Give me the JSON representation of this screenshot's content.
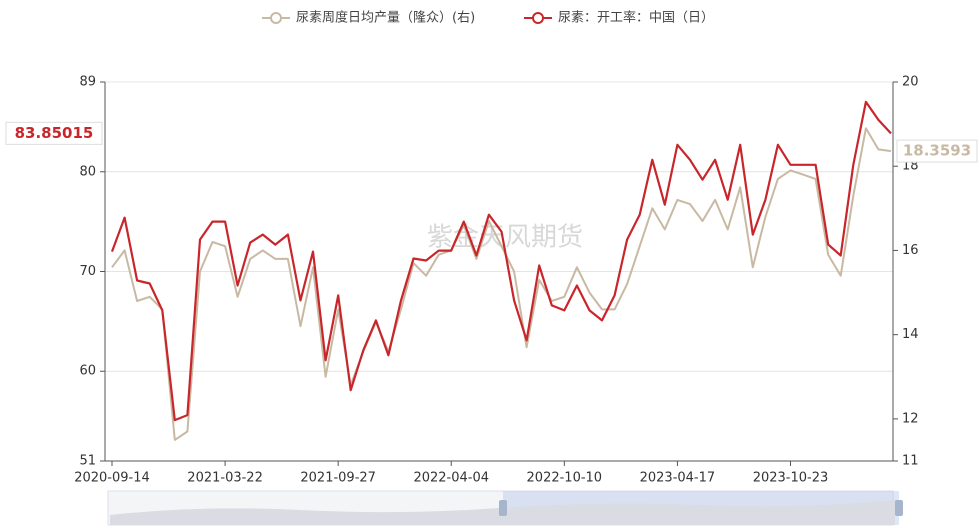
{
  "chart_data": {
    "type": "line",
    "watermark": "紫金天风期货",
    "categories": [
      "2020-09-14",
      null,
      null,
      null,
      null,
      null,
      null,
      null,
      null,
      "2021-03-22",
      null,
      null,
      null,
      null,
      null,
      null,
      null,
      null,
      "2021-09-27",
      null,
      null,
      null,
      null,
      null,
      null,
      null,
      null,
      "2022-04-04",
      null,
      null,
      null,
      null,
      null,
      null,
      null,
      null,
      "2022-10-10",
      null,
      null,
      null,
      null,
      null,
      null,
      null,
      null,
      "2023-04-17",
      null,
      null,
      null,
      null,
      null,
      null,
      null,
      null,
      "2023-10-23",
      null,
      null,
      null,
      null,
      null,
      null,
      null,
      null
    ],
    "series": [
      {
        "name": "尿素周度日均产量（隆众）(右)",
        "color": "#c8b9a3",
        "axis": "y2",
        "values": [
          15.6,
          16.0,
          14.8,
          14.9,
          14.6,
          11.5,
          11.7,
          15.5,
          16.2,
          16.1,
          14.9,
          15.8,
          16.0,
          15.8,
          15.8,
          14.2,
          15.6,
          13.0,
          14.6,
          12.8,
          13.6,
          14.3,
          13.6,
          14.6,
          15.7,
          15.4,
          15.9,
          16.0,
          16.6,
          15.8,
          16.7,
          16.1,
          15.5,
          13.7,
          15.3,
          14.8,
          14.9,
          15.6,
          15.0,
          14.6,
          14.6,
          15.2,
          16.1,
          17.0,
          16.5,
          17.2,
          17.1,
          16.7,
          17.2,
          16.5,
          17.5,
          15.6,
          16.8,
          17.7,
          17.9,
          17.8,
          17.7,
          15.9,
          15.4,
          17.3,
          18.9,
          18.4,
          18.3593
        ]
      },
      {
        "name": "尿素：开工率：中国（日）",
        "color": "#c9262c",
        "values": [
          72.0,
          75.4,
          69.1,
          68.8,
          66.1,
          55.1,
          55.6,
          73.2,
          75.0,
          75.0,
          68.6,
          72.9,
          73.7,
          72.7,
          73.7,
          67.1,
          72.0,
          61.1,
          67.6,
          58.1,
          62.1,
          65.1,
          61.6,
          67.1,
          71.3,
          71.1,
          72.1,
          72.1,
          75.0,
          71.6,
          75.7,
          74.0,
          67.1,
          63.1,
          70.6,
          66.6,
          66.1,
          68.6,
          66.1,
          65.1,
          67.6,
          73.2,
          75.7,
          81.2,
          76.7,
          82.7,
          81.2,
          79.2,
          81.2,
          77.2,
          82.7,
          73.7,
          77.2,
          82.7,
          80.7,
          80.7,
          80.7,
          72.7,
          71.6,
          80.7,
          87.0,
          85.2,
          83.85015
        ]
      }
    ],
    "ylim": [
      51,
      89
    ],
    "yticks": [
      51,
      60,
      70,
      80,
      89
    ],
    "y2lim": [
      11,
      20
    ],
    "y2ticks": [
      11,
      12,
      14,
      16,
      18,
      20
    ],
    "grid": true
  }
}
